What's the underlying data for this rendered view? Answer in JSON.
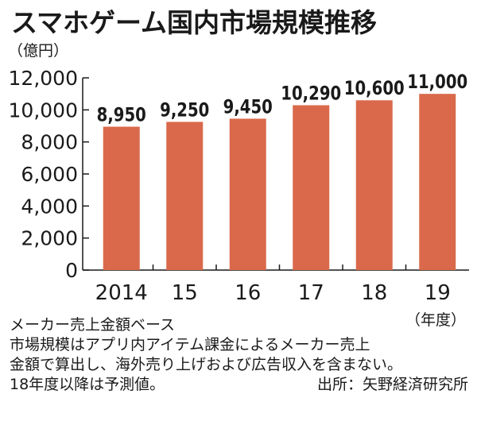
{
  "chart_data": {
    "type": "bar",
    "title": "スマホゲーム国内市場規模推移",
    "unit_label": "（億円）",
    "categories": [
      "2014",
      "15",
      "16",
      "17",
      "18",
      "19"
    ],
    "x_unit_label": "（年度）",
    "values": [
      8950,
      9250,
      9450,
      10290,
      10600,
      11000
    ],
    "value_labels": [
      "8,950",
      "9,250",
      "9,450",
      "10,290",
      "10,600",
      "11,000"
    ],
    "ylim": [
      0,
      12000
    ],
    "yticks": [
      0,
      2000,
      4000,
      6000,
      8000,
      10000,
      12000
    ],
    "ytick_labels": [
      "0",
      "2,000",
      "4,000",
      "6,000",
      "8,000",
      "10,000",
      "12,000"
    ],
    "grid": false,
    "bar_color": "#d9694a",
    "title_color": "#1a1a1a"
  },
  "notes": {
    "line1": "メーカー売上金額ベース",
    "line2": "市場規模はアプリ内アイテム課金によるメーカー売上",
    "line3": "金額で算出し、海外売り上げおよび広告収入を含まない。",
    "line4": "18年度以降は予測値。",
    "source": "出所：矢野経済研究所"
  }
}
